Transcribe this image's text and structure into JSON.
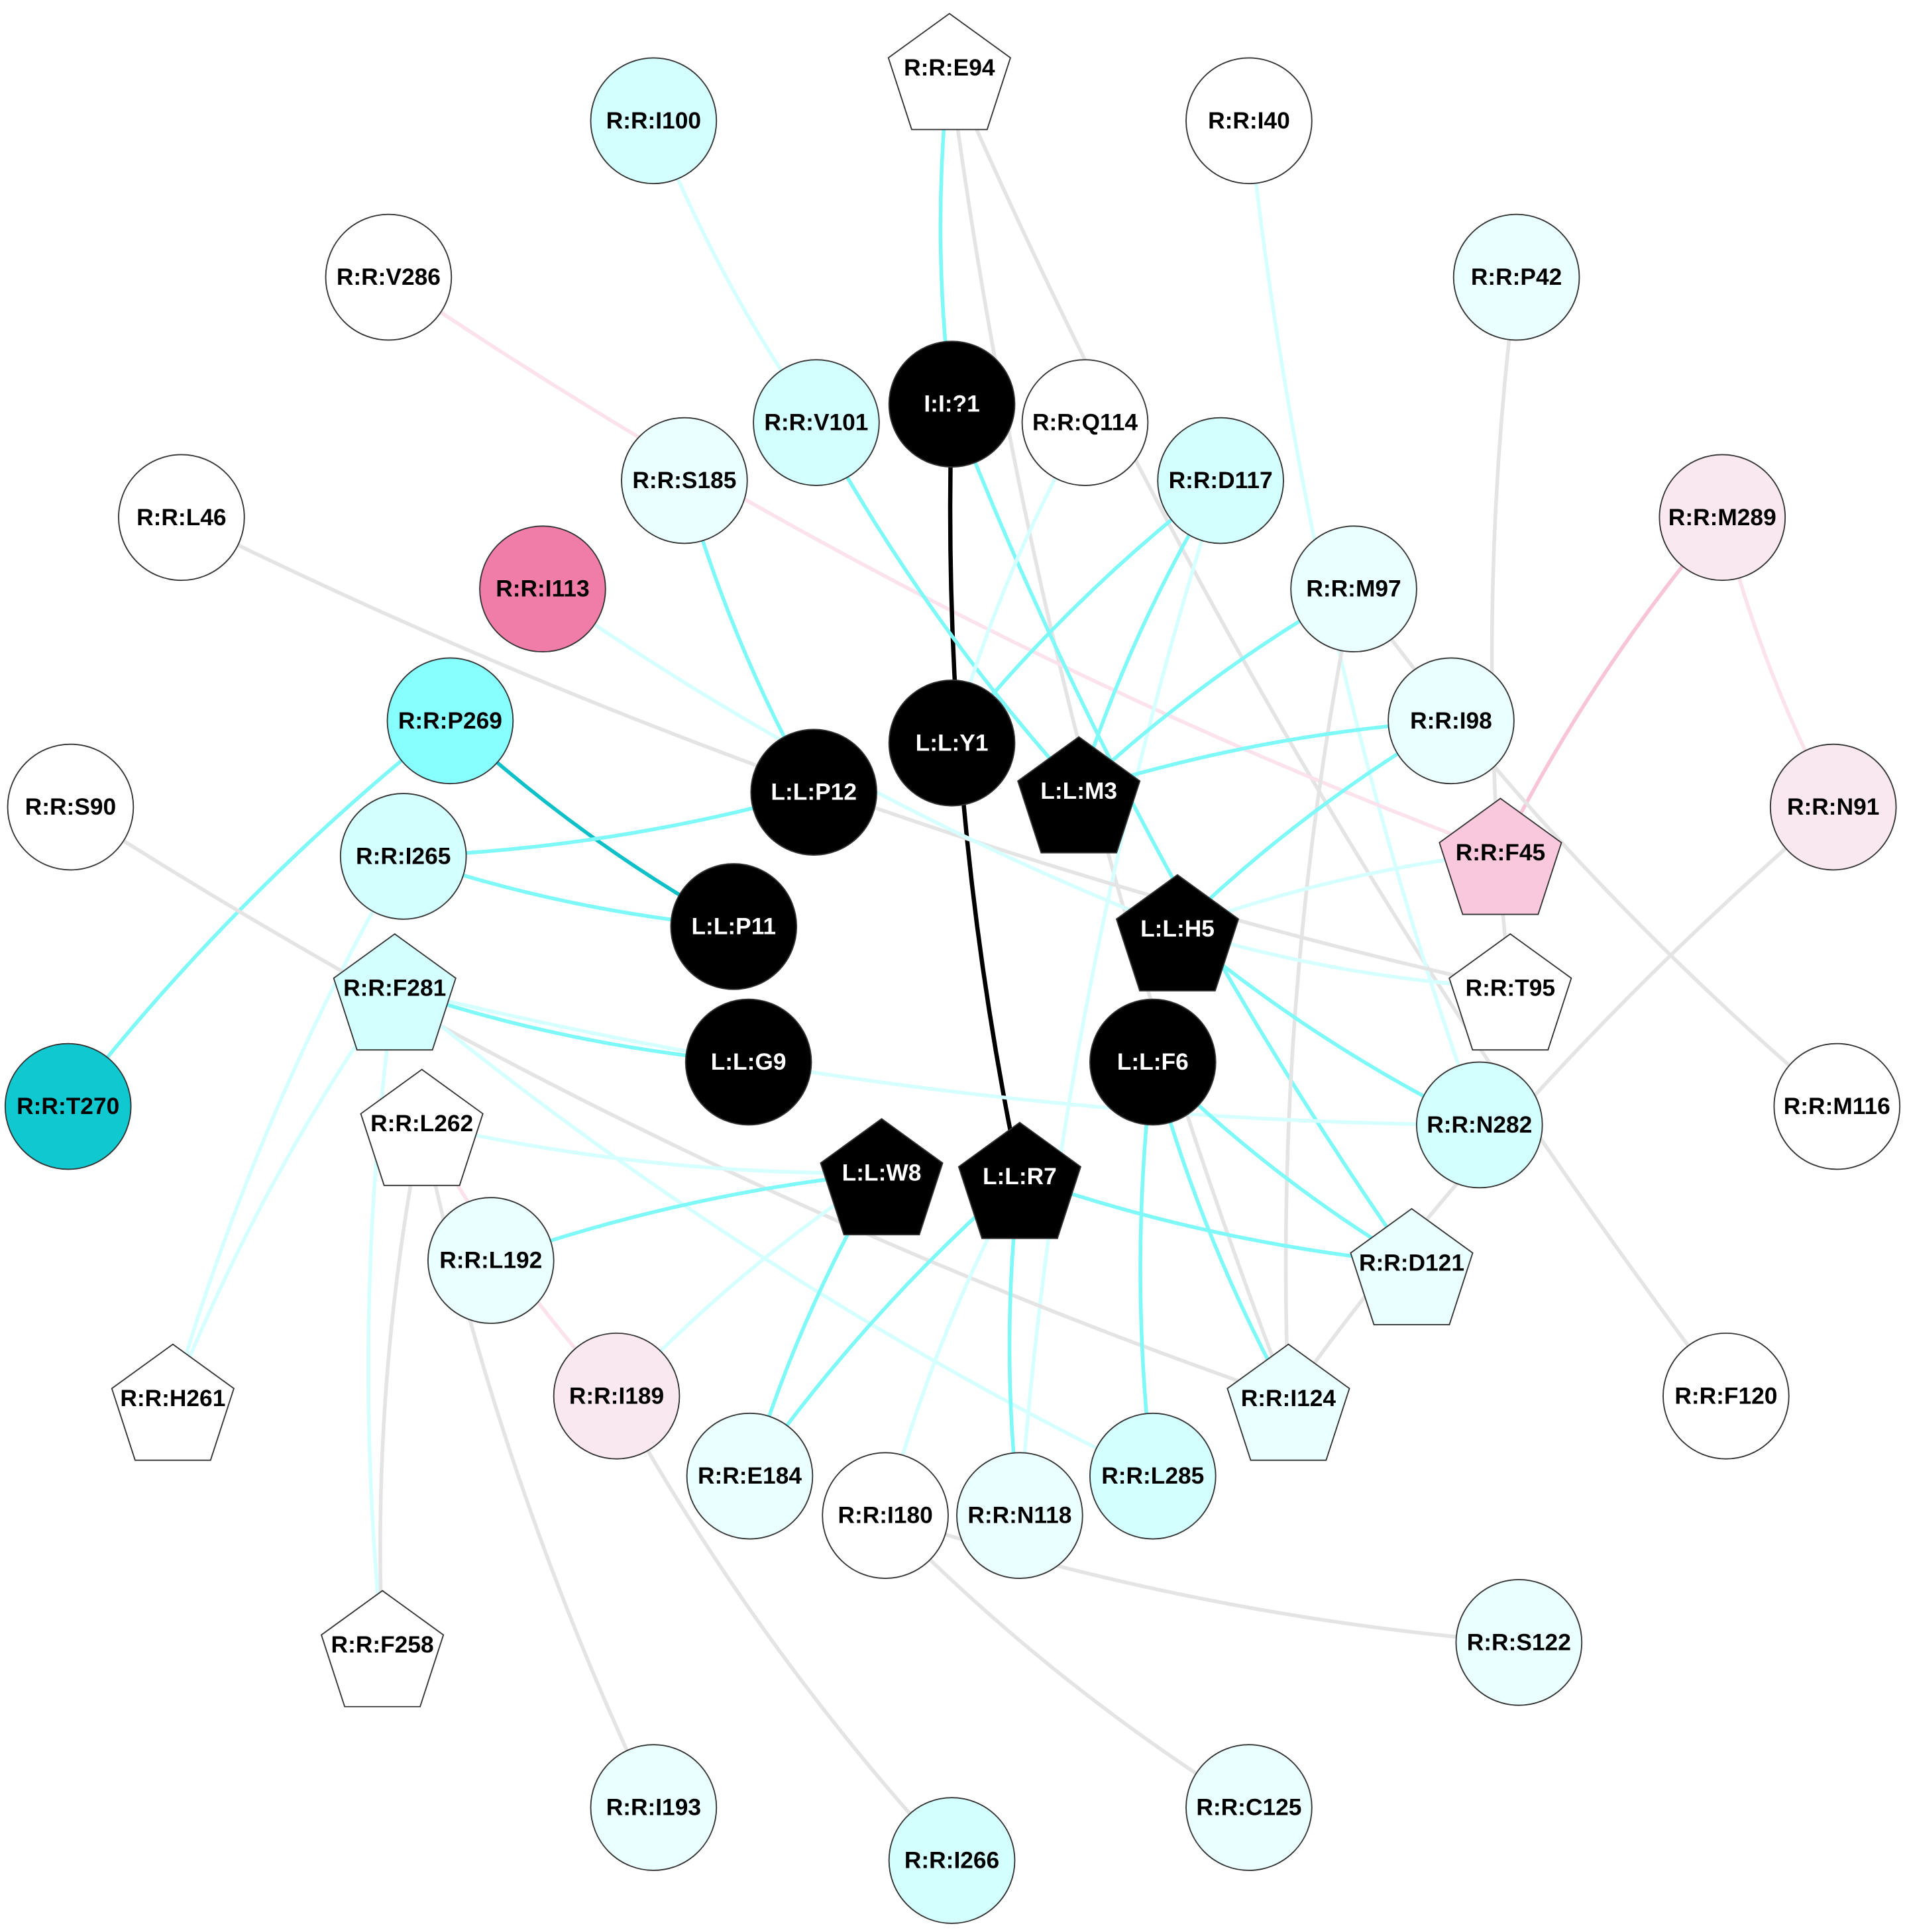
{
  "colors": {
    "cyan": "#7ff8f8",
    "light_cyan": "#d6ffff",
    "gray": "#e4e4e4",
    "pink": "#f8c4d8",
    "light_pink": "#fbe2ec",
    "teal": "#10c0c8",
    "black": "#000000"
  },
  "nodes": [
    {
      "label": "R:R:E94",
      "shape": "pentagon",
      "fill": "#ffffff"
    },
    {
      "label": "R:R:I100",
      "shape": "circle",
      "fill": "#d4ffff"
    },
    {
      "label": "R:R:I40",
      "shape": "circle",
      "fill": "#ffffff"
    },
    {
      "label": "R:R:P42",
      "shape": "circle",
      "fill": "#eaffff"
    },
    {
      "label": "R:R:V286",
      "shape": "circle",
      "fill": "#ffffff"
    },
    {
      "label": "I:I:?1",
      "shape": "circle",
      "fill": "#000000"
    },
    {
      "label": "R:R:V101",
      "shape": "circle",
      "fill": "#d4ffff"
    },
    {
      "label": "R:R:Q114",
      "shape": "circle",
      "fill": "#ffffff"
    },
    {
      "label": "R:R:S185",
      "shape": "circle",
      "fill": "#eaffff"
    },
    {
      "label": "R:R:D117",
      "shape": "circle",
      "fill": "#d4ffff"
    },
    {
      "label": "R:R:L46",
      "shape": "circle",
      "fill": "#ffffff"
    },
    {
      "label": "R:R:M289",
      "shape": "circle",
      "fill": "#f9e8f0"
    },
    {
      "label": "R:R:I113",
      "shape": "circle",
      "fill": "#f07ca8"
    },
    {
      "label": "R:R:M97",
      "shape": "circle",
      "fill": "#eaffff"
    },
    {
      "label": "R:R:P269",
      "shape": "circle",
      "fill": "#88ffff"
    },
    {
      "label": "R:R:I98",
      "shape": "circle",
      "fill": "#eaffff"
    },
    {
      "label": "L:L:Y1",
      "shape": "circle",
      "fill": "#000000"
    },
    {
      "label": "L:L:M3",
      "shape": "pentagon",
      "fill": "#000000"
    },
    {
      "label": "L:L:P12",
      "shape": "circle",
      "fill": "#000000"
    },
    {
      "label": "R:R:S90",
      "shape": "circle",
      "fill": "#ffffff"
    },
    {
      "label": "R:R:N91",
      "shape": "circle",
      "fill": "#f9e8f0"
    },
    {
      "label": "R:R:F45",
      "shape": "pentagon",
      "fill": "#f9c8dc"
    },
    {
      "label": "R:R:I265",
      "shape": "circle",
      "fill": "#d4ffff"
    },
    {
      "label": "L:L:P11",
      "shape": "circle",
      "fill": "#000000"
    },
    {
      "label": "L:L:H5",
      "shape": "pentagon",
      "fill": "#000000"
    },
    {
      "label": "R:R:T95",
      "shape": "pentagon",
      "fill": "#ffffff"
    },
    {
      "label": "R:R:F281",
      "shape": "pentagon",
      "fill": "#d4ffff"
    },
    {
      "label": "L:L:G9",
      "shape": "circle",
      "fill": "#000000"
    },
    {
      "label": "L:L:F6",
      "shape": "circle",
      "fill": "#000000"
    },
    {
      "label": "R:R:T270",
      "shape": "circle",
      "fill": "#10c8d0"
    },
    {
      "label": "R:R:M116",
      "shape": "circle",
      "fill": "#ffffff"
    },
    {
      "label": "R:R:L262",
      "shape": "pentagon",
      "fill": "#ffffff"
    },
    {
      "label": "R:R:N282",
      "shape": "circle",
      "fill": "#d4ffff"
    },
    {
      "label": "L:L:W8",
      "shape": "pentagon",
      "fill": "#000000"
    },
    {
      "label": "L:L:R7",
      "shape": "pentagon",
      "fill": "#000000"
    },
    {
      "label": "R:R:L192",
      "shape": "circle",
      "fill": "#eaffff"
    },
    {
      "label": "R:R:D121",
      "shape": "pentagon",
      "fill": "#eaffff"
    },
    {
      "label": "R:R:H261",
      "shape": "pentagon",
      "fill": "#ffffff"
    },
    {
      "label": "R:R:I189",
      "shape": "circle",
      "fill": "#f9e8f0"
    },
    {
      "label": "R:R:I124",
      "shape": "pentagon",
      "fill": "#eaffff"
    },
    {
      "label": "R:R:F120",
      "shape": "circle",
      "fill": "#ffffff"
    },
    {
      "label": "R:R:E184",
      "shape": "circle",
      "fill": "#eaffff"
    },
    {
      "label": "R:R:L285",
      "shape": "circle",
      "fill": "#d4ffff"
    },
    {
      "label": "R:R:I180",
      "shape": "circle",
      "fill": "#ffffff"
    },
    {
      "label": "R:R:N118",
      "shape": "circle",
      "fill": "#eaffff"
    },
    {
      "label": "R:R:F258",
      "shape": "pentagon",
      "fill": "#ffffff"
    },
    {
      "label": "R:R:S122",
      "shape": "circle",
      "fill": "#eaffff"
    },
    {
      "label": "R:R:I193",
      "shape": "circle",
      "fill": "#eaffff"
    },
    {
      "label": "R:R:C125",
      "shape": "circle",
      "fill": "#eaffff"
    },
    {
      "label": "R:R:I266",
      "shape": "circle",
      "fill": "#d4ffff"
    }
  ],
  "edges": [
    {
      "source": "R:R:E94",
      "target": "I:I:?1",
      "color": "cyan"
    },
    {
      "source": "R:R:E94",
      "target": "R:R:I124",
      "color": "gray"
    },
    {
      "source": "R:R:E94",
      "target": "R:R:F120",
      "color": "gray"
    },
    {
      "source": "R:R:I100",
      "target": "R:R:V101",
      "color": "light_cyan"
    },
    {
      "source": "R:R:I40",
      "target": "R:R:N282",
      "color": "light_cyan"
    },
    {
      "source": "R:R:P42",
      "target": "R:R:T95",
      "color": "gray"
    },
    {
      "source": "R:R:V286",
      "target": "R:R:F45",
      "color": "light_pink"
    },
    {
      "source": "I:I:?1",
      "target": "L:L:R7",
      "color": "black"
    },
    {
      "source": "I:I:?1",
      "target": "R:R:D121",
      "color": "cyan"
    },
    {
      "source": "R:R:V101",
      "target": "L:L:M3",
      "color": "cyan"
    },
    {
      "source": "R:R:Q114",
      "target": "L:L:Y1",
      "color": "light_cyan"
    },
    {
      "source": "R:R:D117",
      "target": "L:L:Y1",
      "color": "cyan"
    },
    {
      "source": "R:R:D117",
      "target": "L:L:M3",
      "color": "cyan"
    },
    {
      "source": "R:R:D117",
      "target": "R:R:N118",
      "color": "light_cyan"
    },
    {
      "source": "R:R:S185",
      "target": "L:L:P12",
      "color": "cyan"
    },
    {
      "source": "R:R:L46",
      "target": "R:R:T95",
      "color": "gray"
    },
    {
      "source": "R:R:M289",
      "target": "R:R:F45",
      "color": "pink"
    },
    {
      "source": "R:R:M289",
      "target": "R:R:N91",
      "color": "light_pink"
    },
    {
      "source": "R:R:I113",
      "target": "L:L:H5",
      "color": "light_cyan"
    },
    {
      "source": "R:R:M97",
      "target": "L:L:M3",
      "color": "cyan"
    },
    {
      "source": "R:R:M97",
      "target": "R:R:M116",
      "color": "gray"
    },
    {
      "source": "R:R:M97",
      "target": "R:R:I124",
      "color": "gray"
    },
    {
      "source": "R:R:P269",
      "target": "L:L:P11",
      "color": "teal"
    },
    {
      "source": "R:R:P269",
      "target": "R:R:T270",
      "color": "cyan"
    },
    {
      "source": "R:R:I98",
      "target": "L:L:M3",
      "color": "cyan"
    },
    {
      "source": "R:R:I98",
      "target": "L:L:H5",
      "color": "cyan"
    },
    {
      "source": "R:R:I265",
      "target": "L:L:P12",
      "color": "cyan"
    },
    {
      "source": "R:R:I265",
      "target": "L:L:P11",
      "color": "cyan"
    },
    {
      "source": "R:R:I265",
      "target": "R:R:H261",
      "color": "light_cyan"
    },
    {
      "source": "R:R:S90",
      "target": "R:R:I124",
      "color": "gray"
    },
    {
      "source": "R:R:N91",
      "target": "R:R:I124",
      "color": "gray"
    },
    {
      "source": "R:R:F45",
      "target": "L:L:H5",
      "color": "light_cyan"
    },
    {
      "source": "L:L:H5",
      "target": "R:R:T95",
      "color": "light_cyan"
    },
    {
      "source": "L:L:H5",
      "target": "R:R:N282",
      "color": "cyan"
    },
    {
      "source": "R:R:F281",
      "target": "L:L:G9",
      "color": "cyan"
    },
    {
      "source": "R:R:F281",
      "target": "R:R:N282",
      "color": "light_cyan"
    },
    {
      "source": "R:R:F281",
      "target": "R:R:L285",
      "color": "light_cyan"
    },
    {
      "source": "R:R:F281",
      "target": "R:R:F258",
      "color": "light_cyan"
    },
    {
      "source": "R:R:F281",
      "target": "R:R:H261",
      "color": "light_cyan"
    },
    {
      "source": "R:R:L262",
      "target": "L:L:W8",
      "color": "light_cyan"
    },
    {
      "source": "R:R:L262",
      "target": "R:R:I189",
      "color": "light_pink"
    },
    {
      "source": "R:R:L262",
      "target": "R:R:F258",
      "color": "gray"
    },
    {
      "source": "R:R:L262",
      "target": "R:R:I193",
      "color": "gray"
    },
    {
      "source": "L:L:W8",
      "target": "R:R:L192",
      "color": "cyan"
    },
    {
      "source": "L:L:W8",
      "target": "R:R:E184",
      "color": "cyan"
    },
    {
      "source": "L:L:W8",
      "target": "R:R:I189",
      "color": "light_cyan"
    },
    {
      "source": "L:L:R7",
      "target": "R:R:E184",
      "color": "cyan"
    },
    {
      "source": "L:L:R7",
      "target": "R:R:N118",
      "color": "cyan"
    },
    {
      "source": "L:L:R7",
      "target": "R:R:I180",
      "color": "light_cyan"
    },
    {
      "source": "L:L:R7",
      "target": "R:R:D121",
      "color": "cyan"
    },
    {
      "source": "L:L:F6",
      "target": "R:R:D121",
      "color": "cyan"
    },
    {
      "source": "L:L:F6",
      "target": "R:R:I124",
      "color": "cyan"
    },
    {
      "source": "L:L:F6",
      "target": "R:R:L285",
      "color": "cyan"
    },
    {
      "source": "R:R:I189",
      "target": "R:R:I266",
      "color": "gray"
    },
    {
      "source": "R:R:I180",
      "target": "R:R:S122",
      "color": "gray"
    },
    {
      "source": "R:R:I180",
      "target": "R:R:C125",
      "color": "gray"
    }
  ]
}
